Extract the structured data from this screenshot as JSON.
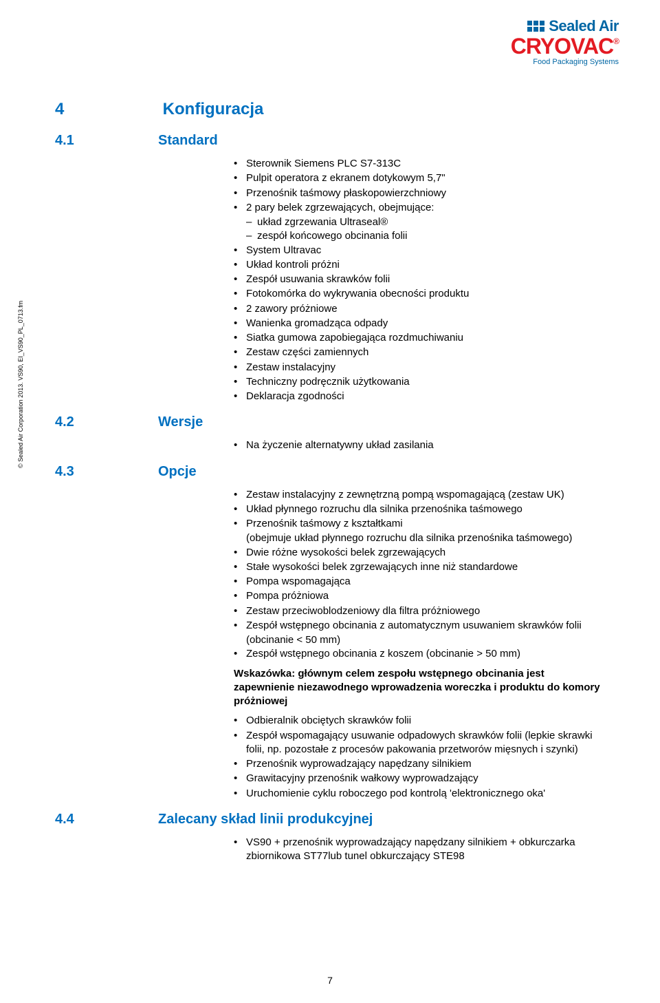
{
  "logo": {
    "sealedair": "Sealed Air",
    "cryovac": "CRYOVAC",
    "fps": "Food Packaging Systems"
  },
  "copyright": "© Sealed Air Corporation 2013. VS90, EI_VS90_PL_0713.fm",
  "section": {
    "num": "4",
    "title": "Konfiguracja"
  },
  "s1": {
    "num": "4.1",
    "title": "Standard",
    "items": [
      "Sterownik Siemens PLC S7-313C",
      "Pulpit operatora z ekranem dotykowym 5,7\"",
      "Przenośnik taśmowy płaskopowierzchniowy",
      "2 pary belek zgrzewających, obejmujące:"
    ],
    "sub": [
      "układ zgrzewania Ultraseal®",
      "zespół końcowego obcinania folii"
    ],
    "items2": [
      "System Ultravac",
      "Układ kontroli próżni",
      "Zespół usuwania skrawków folii",
      "Fotokomórka do wykrywania obecności produktu",
      "2 zawory próżniowe",
      "Wanienka gromadząca odpady",
      "Siatka gumowa zapobiegająca rozdmuchiwaniu",
      "Zestaw części zamiennych",
      "Zestaw instalacyjny",
      "Techniczny podręcznik użytkowania",
      "Deklaracja zgodności"
    ]
  },
  "s2": {
    "num": "4.2",
    "title": "Wersje",
    "items": [
      "Na życzenie alternatywny układ zasilania"
    ]
  },
  "s3": {
    "num": "4.3",
    "title": "Opcje",
    "items": [
      "Zestaw instalacyjny z zewnętrzną pompą wspomagającą (zestaw UK)",
      "Układ płynnego rozruchu dla silnika przenośnika taśmowego",
      "Przenośnik taśmowy z kształtkami"
    ],
    "paren": "(obejmuje układ płynnego rozruchu dla silnika przenośnika taśmowego)",
    "items1b": [
      "Dwie różne wysokości belek zgrzewających",
      "Stałe wysokości belek zgrzewających inne niż standardowe",
      "Pompa wspomagająca",
      "Pompa próżniowa",
      "Zestaw przeciwoblodzeniowy dla filtra próżniowego",
      "Zespół wstępnego obcinania z automatycznym usuwaniem skrawków folii"
    ],
    "paren2": "(obcinanie < 50 mm)",
    "items1c": [
      "Zespół wstępnego obcinania z koszem (obcinanie > 50 mm)"
    ],
    "note": "Wskazówka: głównym celem zespołu wstępnego obcinania jest zapewnienie niezawodnego wprowadzenia woreczka i produktu do komory próżniowej",
    "items2": [
      "Odbieralnik obciętych skrawków folii",
      "Zespół wspomagający usuwanie odpadowych skrawków folii (lepkie skrawki folii, np. pozostałe z procesów pakowania przetworów mięsnych i szynki)",
      "Przenośnik wyprowadzający napędzany silnikiem",
      "Grawitacyjny przenośnik wałkowy wyprowadzający",
      "Uruchomienie cyklu roboczego pod kontrolą 'elektronicznego oka'"
    ]
  },
  "s4": {
    "num": "4.4",
    "title": "Zalecany skład linii produkcyjnej",
    "items": [
      "VS90 + przenośnik wyprowadzający napędzany silnikiem + obkurczarka zbiornikowa ST77lub tunel obkurczający STE98"
    ]
  },
  "pageNumber": "7"
}
